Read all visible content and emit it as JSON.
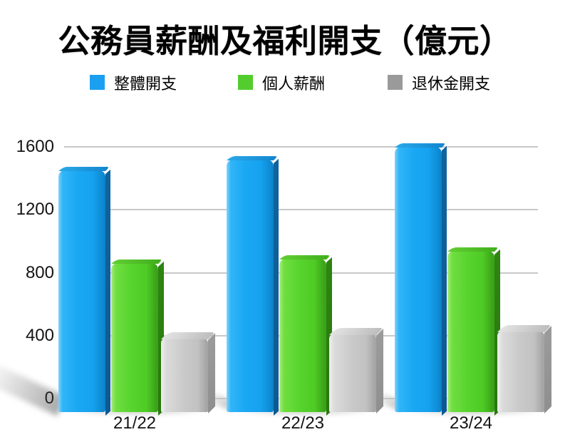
{
  "title": "公務員薪酬及福利開支（億元）",
  "legend": [
    {
      "label": "整體開支",
      "color": "#1b9ff1"
    },
    {
      "label": "個人薪酬",
      "color": "#53cd2e"
    },
    {
      "label": "退休金開支",
      "color": "#9a9a9a"
    }
  ],
  "chart_data": {
    "type": "bar",
    "title": "公務員薪酬及福利開支（億元）",
    "categories": [
      "21/22",
      "22/23",
      "23/24"
    ],
    "series": [
      {
        "name": "整體開支",
        "color": "#18a6f2",
        "values": [
          1450,
          1520,
          1600
        ]
      },
      {
        "name": "個人薪酬",
        "color": "#55d22c",
        "values": [
          860,
          890,
          940
        ]
      },
      {
        "name": "退休金開支",
        "color": "#c7c7c7",
        "values": [
          380,
          410,
          425
        ]
      }
    ],
    "xlabel": "",
    "ylabel": "",
    "ylim": [
      0,
      1600
    ],
    "yticks": [
      0,
      400,
      800,
      1200,
      1600
    ],
    "grid": true,
    "legend_position": "top",
    "style": "3d-glossy"
  }
}
